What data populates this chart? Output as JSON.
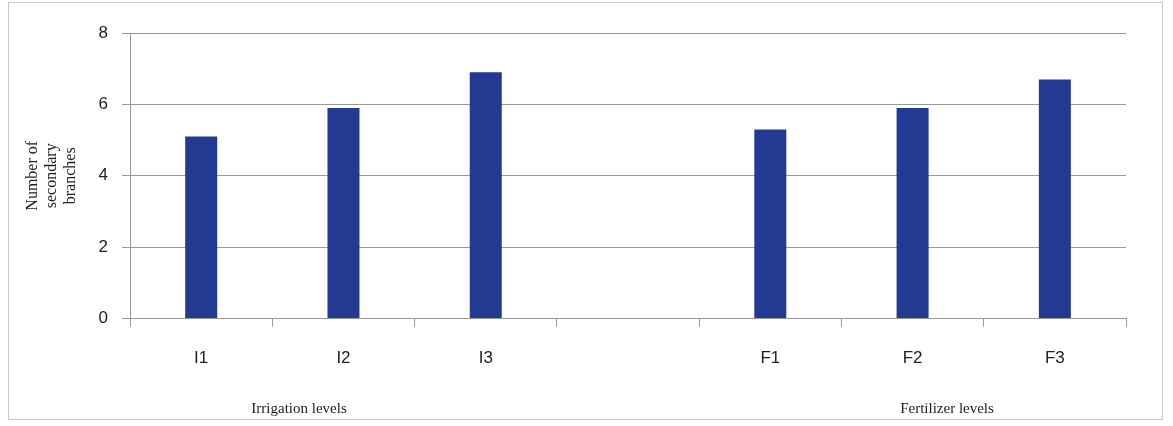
{
  "chart_data": {
    "type": "bar",
    "ylabel": "Number of secondary branches",
    "categories": [
      "I1",
      "I2",
      "I3",
      null,
      "F1",
      "F2",
      "F3"
    ],
    "values": [
      5.1,
      5.9,
      6.9,
      null,
      5.3,
      5.9,
      6.7
    ],
    "color": "#233a92",
    "ylim": [
      0,
      8
    ],
    "yticks": [
      0,
      2,
      4,
      6,
      8
    ],
    "grid": "y",
    "annotations": [
      "Irrigation levels",
      "Fertilizer levels"
    ]
  }
}
